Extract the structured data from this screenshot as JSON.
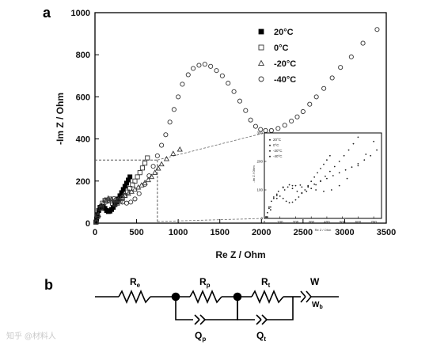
{
  "panel_a_label": "a",
  "panel_b_label": "b",
  "watermark": "知乎 @材料人",
  "chart_data": {
    "type": "scatter",
    "xlabel": "Re Z / Ohm",
    "ylabel": "-Im Z / Ohm",
    "xlim": [
      0,
      3500
    ],
    "ylim": [
      0,
      1000
    ],
    "xticks": [
      "0",
      "500",
      "1000",
      "1500",
      "2000",
      "2500",
      "3000",
      "3500"
    ],
    "yticks": [
      "0",
      "200",
      "400",
      "600",
      "800",
      "1000"
    ],
    "legend_position": "top-right",
    "series": [
      {
        "name": "20°C",
        "marker": "filled-square",
        "x": [
          10,
          20,
          30,
          45,
          60,
          80,
          100,
          120,
          140,
          160,
          180,
          200,
          220,
          240,
          260,
          280,
          300,
          320,
          340,
          360,
          380,
          400,
          420
        ],
        "y": [
          5,
          20,
          40,
          60,
          75,
          80,
          78,
          70,
          60,
          55,
          57,
          65,
          75,
          88,
          100,
          115,
          130,
          145,
          160,
          175,
          190,
          205,
          220
        ]
      },
      {
        "name": "0°C",
        "marker": "open-square",
        "x": [
          10,
          30,
          60,
          90,
          120,
          150,
          180,
          210,
          240,
          270,
          300,
          330,
          360,
          390,
          420,
          450,
          480,
          510,
          540,
          570,
          600,
          630
        ],
        "y": [
          5,
          35,
          70,
          95,
          108,
          110,
          105,
          95,
          90,
          95,
          105,
          118,
          132,
          148,
          165,
          182,
          200,
          220,
          240,
          262,
          285,
          310
        ]
      },
      {
        "name": "-20°C",
        "marker": "open-triangle",
        "x": [
          15,
          40,
          80,
          120,
          160,
          200,
          240,
          280,
          320,
          360,
          400,
          440,
          480,
          520,
          560,
          600,
          640,
          680,
          720,
          760,
          800,
          860,
          940,
          1020
        ],
        "y": [
          5,
          40,
          85,
          110,
          118,
          115,
          110,
          112,
          120,
          130,
          140,
          150,
          160,
          170,
          180,
          192,
          205,
          220,
          240,
          260,
          280,
          305,
          330,
          350
        ]
      },
      {
        "name": "-40°C",
        "marker": "open-circle",
        "x": [
          20,
          40,
          80,
          130,
          180,
          230,
          280,
          330,
          380,
          430,
          480,
          530,
          600,
          650,
          700,
          750,
          800,
          850,
          900,
          950,
          1000,
          1050,
          1120,
          1180,
          1250,
          1320,
          1390,
          1460,
          1530,
          1600,
          1670,
          1740,
          1810,
          1870,
          1930,
          1990,
          2050,
          2120,
          2200,
          2280,
          2360,
          2430,
          2500,
          2580,
          2660,
          2750,
          2850,
          2950,
          3080,
          3220,
          3390
        ],
        "y": [
          5,
          30,
          70,
          100,
          115,
          117,
          110,
          100,
          95,
          100,
          115,
          140,
          185,
          225,
          270,
          320,
          370,
          420,
          480,
          540,
          600,
          660,
          705,
          735,
          750,
          755,
          745,
          725,
          700,
          665,
          625,
          580,
          535,
          490,
          460,
          445,
          440,
          440,
          450,
          465,
          485,
          505,
          530,
          565,
          600,
          640,
          690,
          740,
          790,
          855,
          920
        ]
      }
    ],
    "zoom_box": {
      "xlim": [
        0,
        750
      ],
      "ylim": [
        0,
        300
      ]
    }
  },
  "inset": {
    "xlabel": "Re Z / Ohm",
    "ylabel": "-Im Z / Ohm",
    "xticks": [
      "0",
      "100",
      "200",
      "300",
      "400",
      "500",
      "600",
      "700"
    ],
    "yticks": [
      "0",
      "100",
      "200",
      "300"
    ],
    "legend": [
      "20°C",
      "0°C",
      "-20°C",
      "-40°C"
    ]
  },
  "circuit": {
    "elements": [
      "R",
      "R",
      "R",
      "W",
      "Q",
      "Q"
    ],
    "subscripts": [
      "e",
      "p",
      "t",
      "",
      "p",
      "t"
    ],
    "warburg_label": "W",
    "warburg_sub": "b"
  }
}
